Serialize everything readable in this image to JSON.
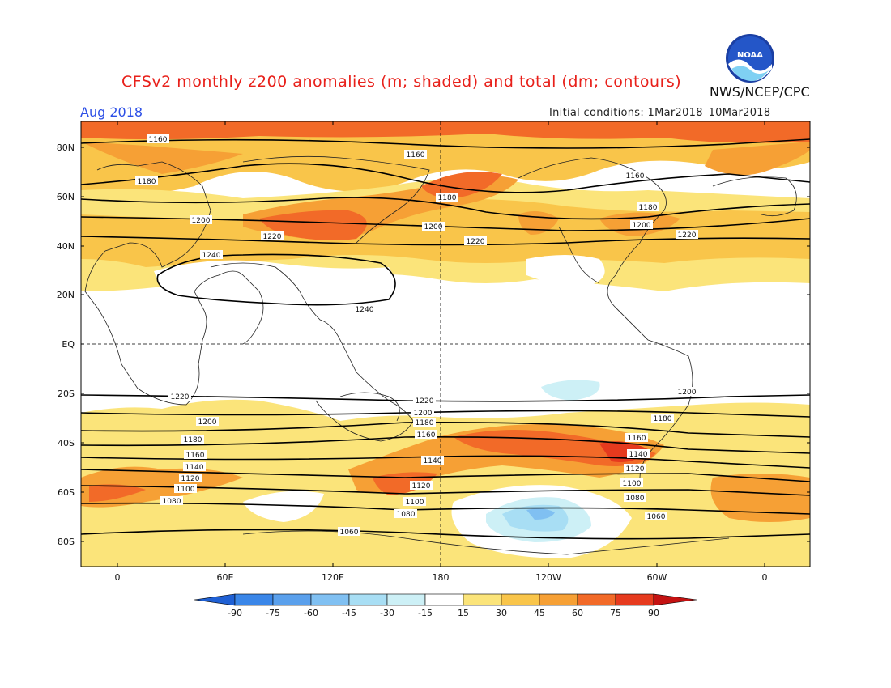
{
  "header": {
    "title": "CFSv2 monthly z200 anomalies (m; shaded) and total (dm; contours)",
    "agency": "NWS/NCEP/CPC",
    "month": "Aug 2018",
    "initial_conditions": "Initial conditions: 1Mar2018–10Mar2018",
    "logo_text": "NOAA"
  },
  "axes": {
    "lat_labels": [
      "80N",
      "60N",
      "40N",
      "20N",
      "EQ",
      "20S",
      "40S",
      "60S",
      "80S"
    ],
    "lon_labels": [
      "0",
      "60E",
      "120E",
      "180",
      "120W",
      "60W",
      "0"
    ]
  },
  "colorbar": {
    "labels": [
      "-90",
      "-75",
      "-60",
      "-45",
      "-30",
      "-15",
      "15",
      "30",
      "45",
      "60",
      "75",
      "90"
    ],
    "colors": [
      "#1f60d4",
      "#3a86e8",
      "#5aa0ec",
      "#80c0f2",
      "#a8def4",
      "#cdf0f6",
      "#ffffff",
      "#fbe47a",
      "#f9c54a",
      "#f6a035",
      "#f26a28",
      "#e63a1e",
      "#c41212"
    ]
  },
  "contours": {
    "labels": [
      "1160",
      "1160",
      "1160",
      "1180",
      "1180",
      "1180",
      "1200",
      "1200",
      "1200",
      "1220",
      "1220",
      "1220",
      "1240",
      "1240",
      "1220",
      "1220",
      "1200",
      "1200",
      "1200",
      "1180",
      "1180",
      "1180",
      "1160",
      "1160",
      "1160",
      "1140",
      "1140",
      "1140",
      "1120",
      "1120",
      "1120",
      "1100",
      "1100",
      "1100",
      "1080",
      "1080",
      "1080",
      "1060",
      "1060"
    ]
  },
  "chart_data": {
    "type": "heatmap",
    "title": "CFSv2 monthly z200 anomalies (m; shaded) and total (dm; contours)",
    "period": "Aug 2018",
    "xlim": [
      -20,
      380
    ],
    "ylim": [
      -90,
      90
    ],
    "anomaly_levels_m": [
      -90,
      -75,
      -60,
      -45,
      -30,
      -15,
      15,
      30,
      45,
      60,
      75,
      90
    ],
    "contour_levels_dm": [
      1060,
      1080,
      1100,
      1120,
      1140,
      1160,
      1180,
      1200,
      1220,
      1240
    ]
  }
}
